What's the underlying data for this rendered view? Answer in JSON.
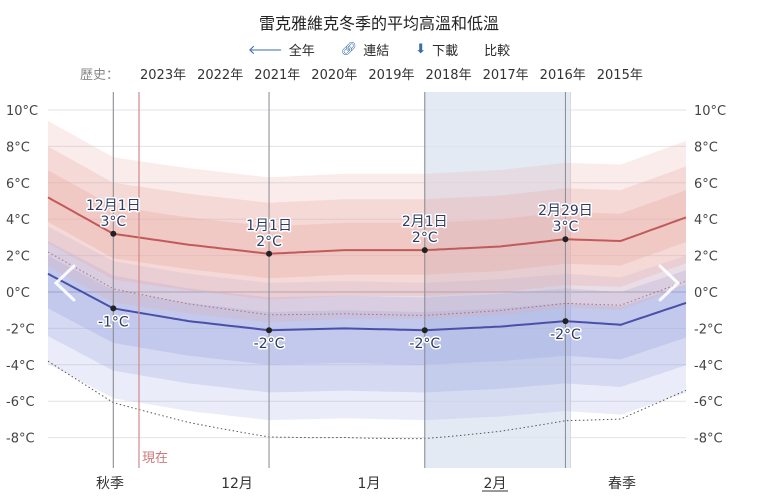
{
  "header": {
    "title": "雷克雅維克冬季的平均高溫和低溫",
    "tools": [
      {
        "icon": "arrow-left-icon",
        "label": "全年"
      },
      {
        "icon": "link-icon",
        "label": "連結"
      },
      {
        "icon": "download-icon",
        "label": "下載"
      },
      {
        "icon": "",
        "label": "比較"
      }
    ],
    "history_label": "歷史：",
    "history_years": [
      "2023年",
      "2022年",
      "2021年",
      "2020年",
      "2019年",
      "2018年",
      "2017年",
      "2016年",
      "2015年"
    ]
  },
  "nav": {
    "prev_icon": "chevron-left-icon",
    "next_icon": "chevron-right-icon"
  },
  "now_label": "現在",
  "colors": {
    "high": "#c25a5a",
    "low": "#4a4fa8",
    "highBand": "#e8a9a5",
    "lowBand": "#9fa9e3",
    "highlight": "#dfe6f2"
  },
  "chart_data": {
    "type": "line",
    "title": "雷克雅維克冬季的平均高溫和低溫",
    "y_unit": "°C",
    "ylim": [
      -9,
      10.5
    ],
    "yticks": [
      "10°C",
      "8°C",
      "6°C",
      "4°C",
      "2°C",
      "0°C",
      "-2°C",
      "-4°C",
      "-6°C",
      "-8°C"
    ],
    "ytick_values": [
      10,
      8,
      6,
      4,
      2,
      0,
      -2,
      -4,
      -6,
      -8
    ],
    "x_labels": [
      "秋季",
      "12月",
      "1月",
      "2月",
      "春季"
    ],
    "x_start": "11月18日",
    "x_end": "3月25日",
    "highlighted_month": "2月",
    "series": [
      {
        "role": "high",
        "x": [
          "11月18日",
          "12月1日",
          "12月16日",
          "1月1日",
          "1月16日",
          "2月1日",
          "2月16日",
          "2月29日",
          "3月12日",
          "3月25日"
        ],
        "values": [
          5.2,
          3.2,
          2.6,
          2.1,
          2.3,
          2.3,
          2.5,
          2.9,
          2.8,
          4.1
        ]
      },
      {
        "role": "low",
        "x": [
          "11月18日",
          "12月1日",
          "12月16日",
          "1月1日",
          "1月16日",
          "2月1日",
          "2月16日",
          "2月29日",
          "3月12日",
          "3月25日"
        ],
        "values": [
          1.0,
          -0.9,
          -1.6,
          -2.1,
          -2.0,
          -2.1,
          -1.9,
          -1.6,
          -1.8,
          -0.6
        ]
      }
    ],
    "annotations": [
      {
        "date": "12月1日",
        "high_label": "12月1日",
        "high_value": "3°C",
        "low_value": "-1°C"
      },
      {
        "date": "1月1日",
        "high_label": "1月1日",
        "high_value": "2°C",
        "low_value": "-2°C"
      },
      {
        "date": "2月1日",
        "high_label": "2月1日",
        "high_value": "2°C",
        "low_value": "-2°C"
      },
      {
        "date": "2月29日",
        "high_label": "2月29日",
        "high_value": "3°C",
        "low_value": "-2°C"
      }
    ],
    "grid": true
  }
}
